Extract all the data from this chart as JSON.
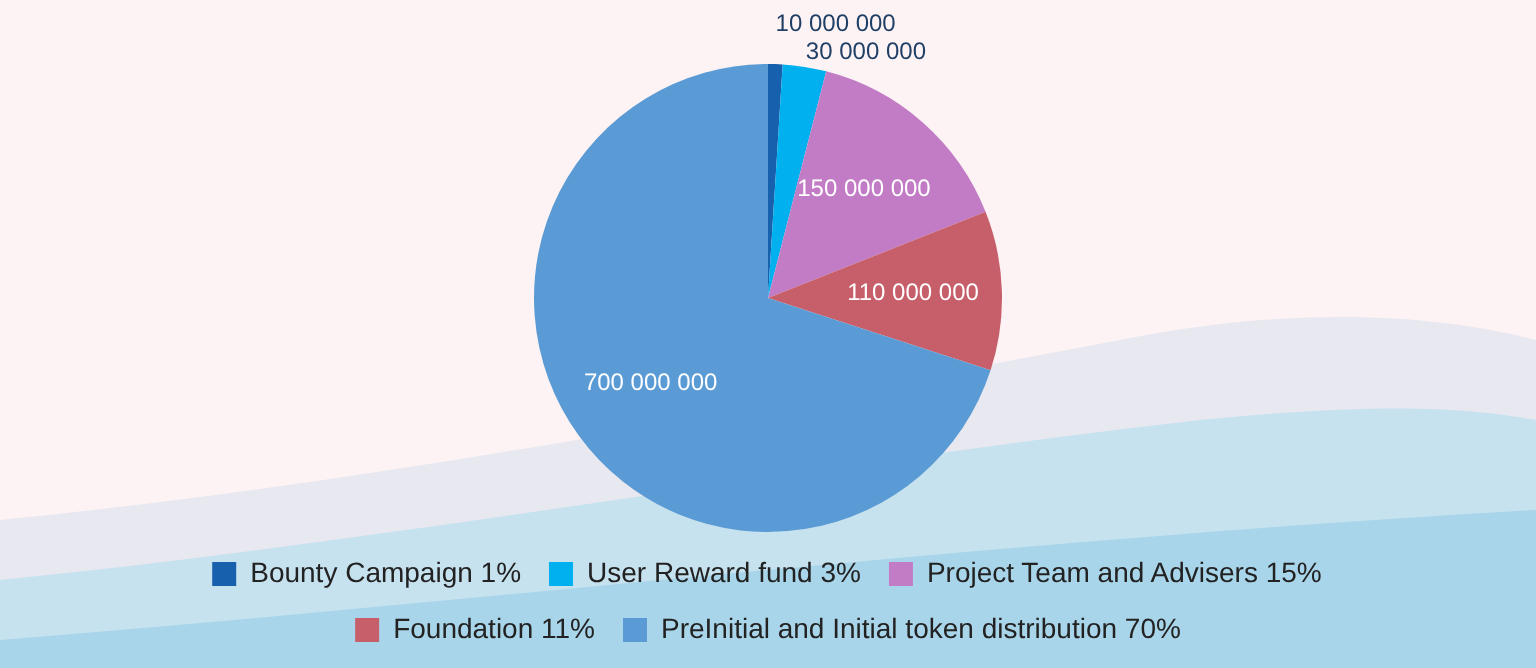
{
  "chart_data": {
    "type": "pie",
    "categories": [
      "Bounty Campaign 1%",
      "User Reward fund 3%",
      "Project Team and Advisers 15%",
      "Foundation 11%",
      "PreInitial and Initial token distribution 70%"
    ],
    "values": [
      10000000,
      30000000,
      150000000,
      110000000,
      700000000
    ],
    "value_labels": [
      "10 000 000",
      "30 000 000",
      "150 000 000",
      "110 000 000",
      "700 000 000"
    ],
    "colors": [
      "#1760ad",
      "#00b0ef",
      "#c27cc6",
      "#c75f6b",
      "#5b9bd5"
    ],
    "legend": "bottom"
  }
}
